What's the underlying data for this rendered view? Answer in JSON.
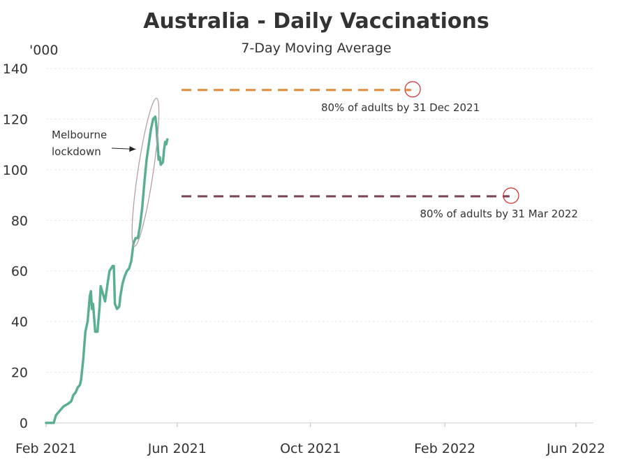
{
  "chart_data": {
    "type": "line",
    "title": "Australia - Daily Vaccinations",
    "subtitle": "7-Day Moving Average",
    "unit_label": "'000",
    "xlabel": "",
    "ylabel": "",
    "ylim": [
      0,
      140
    ],
    "xlim": [
      "2021-02-01",
      "2022-06-01"
    ],
    "y_ticks": [
      0,
      20,
      40,
      60,
      80,
      100,
      120,
      140
    ],
    "x_ticks": [
      {
        "date": "2021-02-01",
        "label": "Feb 2021"
      },
      {
        "date": "2021-06-01",
        "label": "Jun 2021"
      },
      {
        "date": "2021-10-01",
        "label": "Oct 2021"
      },
      {
        "date": "2022-02-01",
        "label": "Feb 2022"
      },
      {
        "date": "2022-06-01",
        "label": "Jun 2022"
      }
    ],
    "grid": true,
    "series": [
      {
        "color": "#5aaf93",
        "points": [
          [
            "2021-02-01",
            0
          ],
          [
            "2021-02-05",
            0
          ],
          [
            "2021-02-08",
            0
          ],
          [
            "2021-02-10",
            3
          ],
          [
            "2021-02-12",
            4
          ],
          [
            "2021-02-14",
            5
          ],
          [
            "2021-02-17",
            6.5
          ],
          [
            "2021-02-21",
            7.5
          ],
          [
            "2021-02-24",
            8.5
          ],
          [
            "2021-02-26",
            11
          ],
          [
            "2021-02-28",
            12
          ],
          [
            "2021-03-02",
            14
          ],
          [
            "2021-03-04",
            15
          ],
          [
            "2021-03-05",
            17
          ],
          [
            "2021-03-07",
            25
          ],
          [
            "2021-03-09",
            36
          ],
          [
            "2021-03-11",
            40
          ],
          [
            "2021-03-13",
            50
          ],
          [
            "2021-03-14",
            52
          ],
          [
            "2021-03-15",
            45
          ],
          [
            "2021-03-16",
            47
          ],
          [
            "2021-03-18",
            36
          ],
          [
            "2021-03-20",
            36
          ],
          [
            "2021-03-22",
            46
          ],
          [
            "2021-03-23",
            54
          ],
          [
            "2021-03-25",
            51
          ],
          [
            "2021-03-27",
            48
          ],
          [
            "2021-03-29",
            54
          ],
          [
            "2021-03-31",
            60
          ],
          [
            "2021-04-03",
            62
          ],
          [
            "2021-04-04",
            62
          ],
          [
            "2021-04-05",
            47
          ],
          [
            "2021-04-07",
            45
          ],
          [
            "2021-04-09",
            46
          ],
          [
            "2021-04-10",
            50
          ],
          [
            "2021-04-12",
            55
          ],
          [
            "2021-04-14",
            58
          ],
          [
            "2021-04-16",
            60
          ],
          [
            "2021-04-18",
            61
          ],
          [
            "2021-04-20",
            64
          ],
          [
            "2021-04-22",
            71
          ],
          [
            "2021-04-24",
            73
          ],
          [
            "2021-04-26",
            73
          ],
          [
            "2021-04-28",
            78
          ],
          [
            "2021-04-30",
            85
          ],
          [
            "2021-05-02",
            95
          ],
          [
            "2021-05-04",
            104
          ],
          [
            "2021-05-06",
            110
          ],
          [
            "2021-05-08",
            116
          ],
          [
            "2021-05-10",
            120
          ],
          [
            "2021-05-12",
            121
          ],
          [
            "2021-05-13",
            117
          ],
          [
            "2021-05-15",
            104
          ],
          [
            "2021-05-16",
            105
          ],
          [
            "2021-05-17",
            102
          ],
          [
            "2021-05-19",
            103
          ],
          [
            "2021-05-20",
            108
          ],
          [
            "2021-05-21",
            111
          ],
          [
            "2021-05-22",
            110
          ],
          [
            "2021-05-23",
            112
          ]
        ]
      }
    ],
    "targets": [
      {
        "label": "80% of adults by 31 Dec 2021",
        "value": 131.5,
        "from": "2021-06-05",
        "to": "2021-12-31",
        "color": "#e08b3a"
      },
      {
        "label": "80% of adults by 31 Mar 2022",
        "value": 89.5,
        "from": "2021-06-05",
        "to": "2022-03-31",
        "color": "#7a4356"
      }
    ],
    "annotations": [
      {
        "text": [
          "Melbourne",
          "lockdown"
        ],
        "target": "peak"
      }
    ]
  }
}
